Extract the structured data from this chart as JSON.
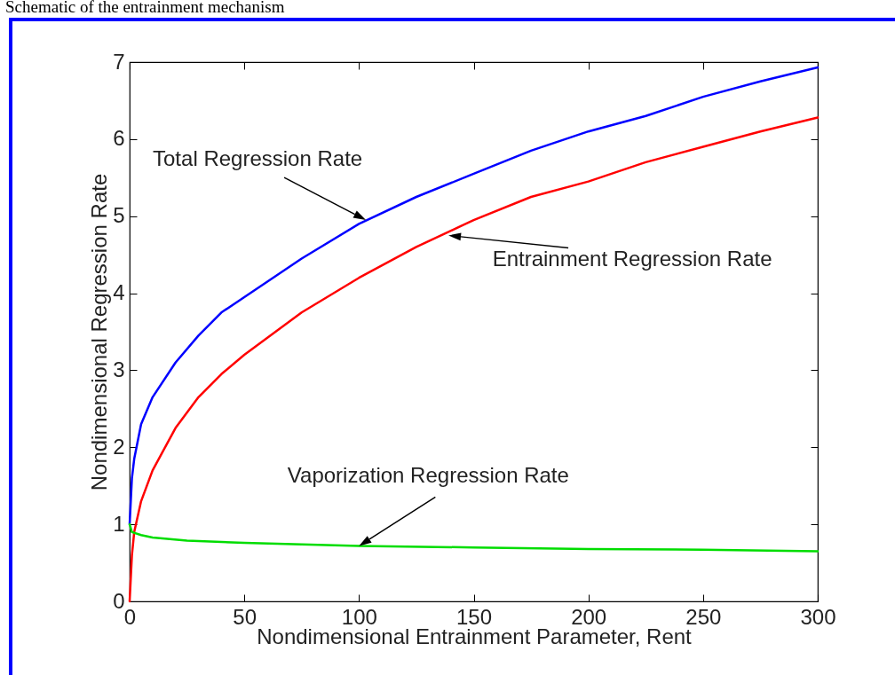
{
  "chart_data": {
    "type": "line",
    "xlabel": "Nondimensional Entrainment Parameter, Rent",
    "ylabel": "Nondimensional Regression Rate",
    "xlim": [
      0,
      300
    ],
    "xticks": [
      0,
      50,
      100,
      150,
      200,
      250,
      300
    ],
    "ylim": [
      0,
      7
    ],
    "yticks": [
      0,
      1,
      2,
      3,
      4,
      5,
      6,
      7
    ],
    "grid": false,
    "marker": "none",
    "line_style": "solid",
    "series": [
      {
        "color": "#0000ff",
        "x": [
          0,
          1,
          2,
          5,
          10,
          20,
          30,
          40,
          50,
          75,
          100,
          125,
          150,
          175,
          200,
          225,
          250,
          275,
          300
        ],
        "values": [
          1.0,
          1.6,
          1.85,
          2.3,
          2.65,
          3.1,
          3.45,
          3.75,
          3.95,
          4.45,
          4.9,
          5.25,
          5.55,
          5.85,
          6.1,
          6.3,
          6.55,
          6.75,
          6.93
        ]
      },
      {
        "color": "#ff0000",
        "x": [
          0,
          1,
          2,
          5,
          10,
          20,
          30,
          40,
          50,
          75,
          100,
          125,
          150,
          175,
          200,
          225,
          250,
          275,
          300
        ],
        "values": [
          0,
          0.6,
          0.9,
          1.3,
          1.7,
          2.25,
          2.65,
          2.95,
          3.2,
          3.75,
          4.2,
          4.6,
          4.95,
          5.25,
          5.45,
          5.7,
          5.9,
          6.1,
          6.28
        ]
      },
      {
        "color": "#00dd00",
        "x": [
          0,
          1,
          5,
          10,
          25,
          50,
          100,
          150,
          200,
          250,
          300
        ],
        "values": [
          1.0,
          0.9,
          0.86,
          0.83,
          0.79,
          0.76,
          0.72,
          0.7,
          0.68,
          0.67,
          0.65
        ]
      }
    ],
    "annotations": [
      "Schematic of the entrainment mechanism",
      {
        "text": "Total Regression Rate",
        "x": 103,
        "y": 4.95
      },
      {
        "text": "Entrainment Regression Rate",
        "x": 139,
        "y": 4.75
      },
      {
        "text": "Vaporization Regression Rate",
        "x": 100,
        "y": 0.72
      }
    ]
  }
}
